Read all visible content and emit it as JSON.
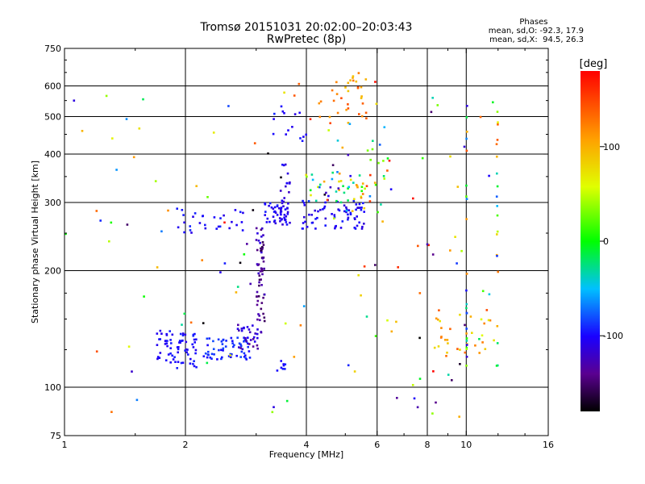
{
  "stats": {
    "heading": "Phases",
    "o_line": "mean, sd,O: -92.3, 17.9",
    "x_line": "mean, sd,X:  94.5, 26.3"
  },
  "colorbar": {
    "label": "[deg]",
    "ticks": [
      {
        "value": 100,
        "label": "100"
      },
      {
        "value": 0,
        "label": "0"
      },
      {
        "value": -100,
        "label": "-100"
      }
    ],
    "range": [
      -180,
      180
    ]
  },
  "chart_data": {
    "type": "scatter",
    "title": "Tromsø 20151031 20:02:00–20:03:43",
    "subtitle": "RwPretec (8p)",
    "xlabel": "Frequency [MHz]",
    "ylabel": "Stationary phase Virtual Height [km]",
    "xscale": "log",
    "yscale": "log",
    "xlim": [
      1,
      16
    ],
    "ylim": [
      75,
      750
    ],
    "xticks": [
      {
        "v": 1,
        "label": "1"
      },
      {
        "v": 2,
        "label": "2"
      },
      {
        "v": 4,
        "label": "4"
      },
      {
        "v": 6,
        "label": "6"
      },
      {
        "v": 8,
        "label": "8"
      },
      {
        "v": 10,
        "label": "10"
      },
      {
        "v": 16,
        "label": "16"
      }
    ],
    "xgrid": [
      2,
      4,
      6,
      8,
      10
    ],
    "yticks": [
      {
        "v": 75,
        "label": "75"
      },
      {
        "v": 100,
        "label": "100"
      },
      {
        "v": 200,
        "label": "200"
      },
      {
        "v": 300,
        "label": "300"
      },
      {
        "v": 400,
        "label": "400"
      },
      {
        "v": 500,
        "label": "500"
      },
      {
        "v": 600,
        "label": "600"
      },
      {
        "v": 750,
        "label": "750"
      }
    ],
    "ygrid": [
      100,
      200,
      300,
      400,
      500,
      600
    ],
    "grid": true,
    "color_variable": "phase [deg]",
    "clusters": [
      {
        "f": [
          1.7,
          2.15
        ],
        "h": [
          112,
          140
        ],
        "phase": [
          -110,
          -90
        ],
        "n": 70
      },
      {
        "f": [
          2.2,
          2.9
        ],
        "h": [
          118,
          135
        ],
        "phase": [
          -100,
          -80
        ],
        "n": 60
      },
      {
        "f": [
          2.7,
          3.1
        ],
        "h": [
          125,
          145
        ],
        "phase": [
          -140,
          -100
        ],
        "n": 30
      },
      {
        "f": [
          3.0,
          3.15
        ],
        "h": [
          145,
          260
        ],
        "phase": [
          -160,
          -110
        ],
        "n": 60
      },
      {
        "f": [
          3.15,
          3.6
        ],
        "h": [
          265,
          300
        ],
        "phase": [
          -115,
          -90
        ],
        "n": 40
      },
      {
        "f": [
          3.45,
          3.65
        ],
        "h": [
          260,
          380
        ],
        "phase": [
          -120,
          -95
        ],
        "n": 25
      },
      {
        "f": [
          3.9,
          5.6
        ],
        "h": [
          255,
          305
        ],
        "phase": [
          -115,
          -90
        ],
        "n": 70
      },
      {
        "f": [
          3.9,
          5.8
        ],
        "h": [
          300,
          360
        ],
        "phase": [
          -130,
          120
        ],
        "n": 45
      },
      {
        "f": [
          4.3,
          5.7
        ],
        "h": [
          480,
          650
        ],
        "phase": [
          90,
          150
        ],
        "n": 35
      },
      {
        "f": [
          3.3,
          4.0
        ],
        "h": [
          430,
          540
        ],
        "phase": [
          -110,
          -90
        ],
        "n": 15
      },
      {
        "f": [
          1.9,
          2.8
        ],
        "h": [
          250,
          290
        ],
        "phase": [
          -110,
          -90
        ],
        "n": 30
      },
      {
        "f": [
          8.0,
          11.8
        ],
        "h": [
          120,
          160
        ],
        "phase": [
          60,
          150
        ],
        "n": 30
      },
      {
        "f": [
          5.5,
          6.4
        ],
        "h": [
          260,
          420
        ],
        "phase": [
          -40,
          160
        ],
        "n": 20
      },
      {
        "f": [
          1.0,
          12.0
        ],
        "h": [
          80,
          640
        ],
        "phase": [
          -180,
          180
        ],
        "n": 130
      },
      {
        "f": [
          10.0,
          10.05
        ],
        "h": [
          110,
          560
        ],
        "phase": [
          -120,
          150
        ],
        "n": 25
      },
      {
        "f": [
          11.9,
          12.0
        ],
        "h": [
          110,
          560
        ],
        "phase": [
          -120,
          150
        ],
        "n": 20
      },
      {
        "f": [
          3.35,
          3.55
        ],
        "h": [
          110,
          120
        ],
        "phase": [
          -100,
          -90
        ],
        "n": 8
      }
    ]
  }
}
